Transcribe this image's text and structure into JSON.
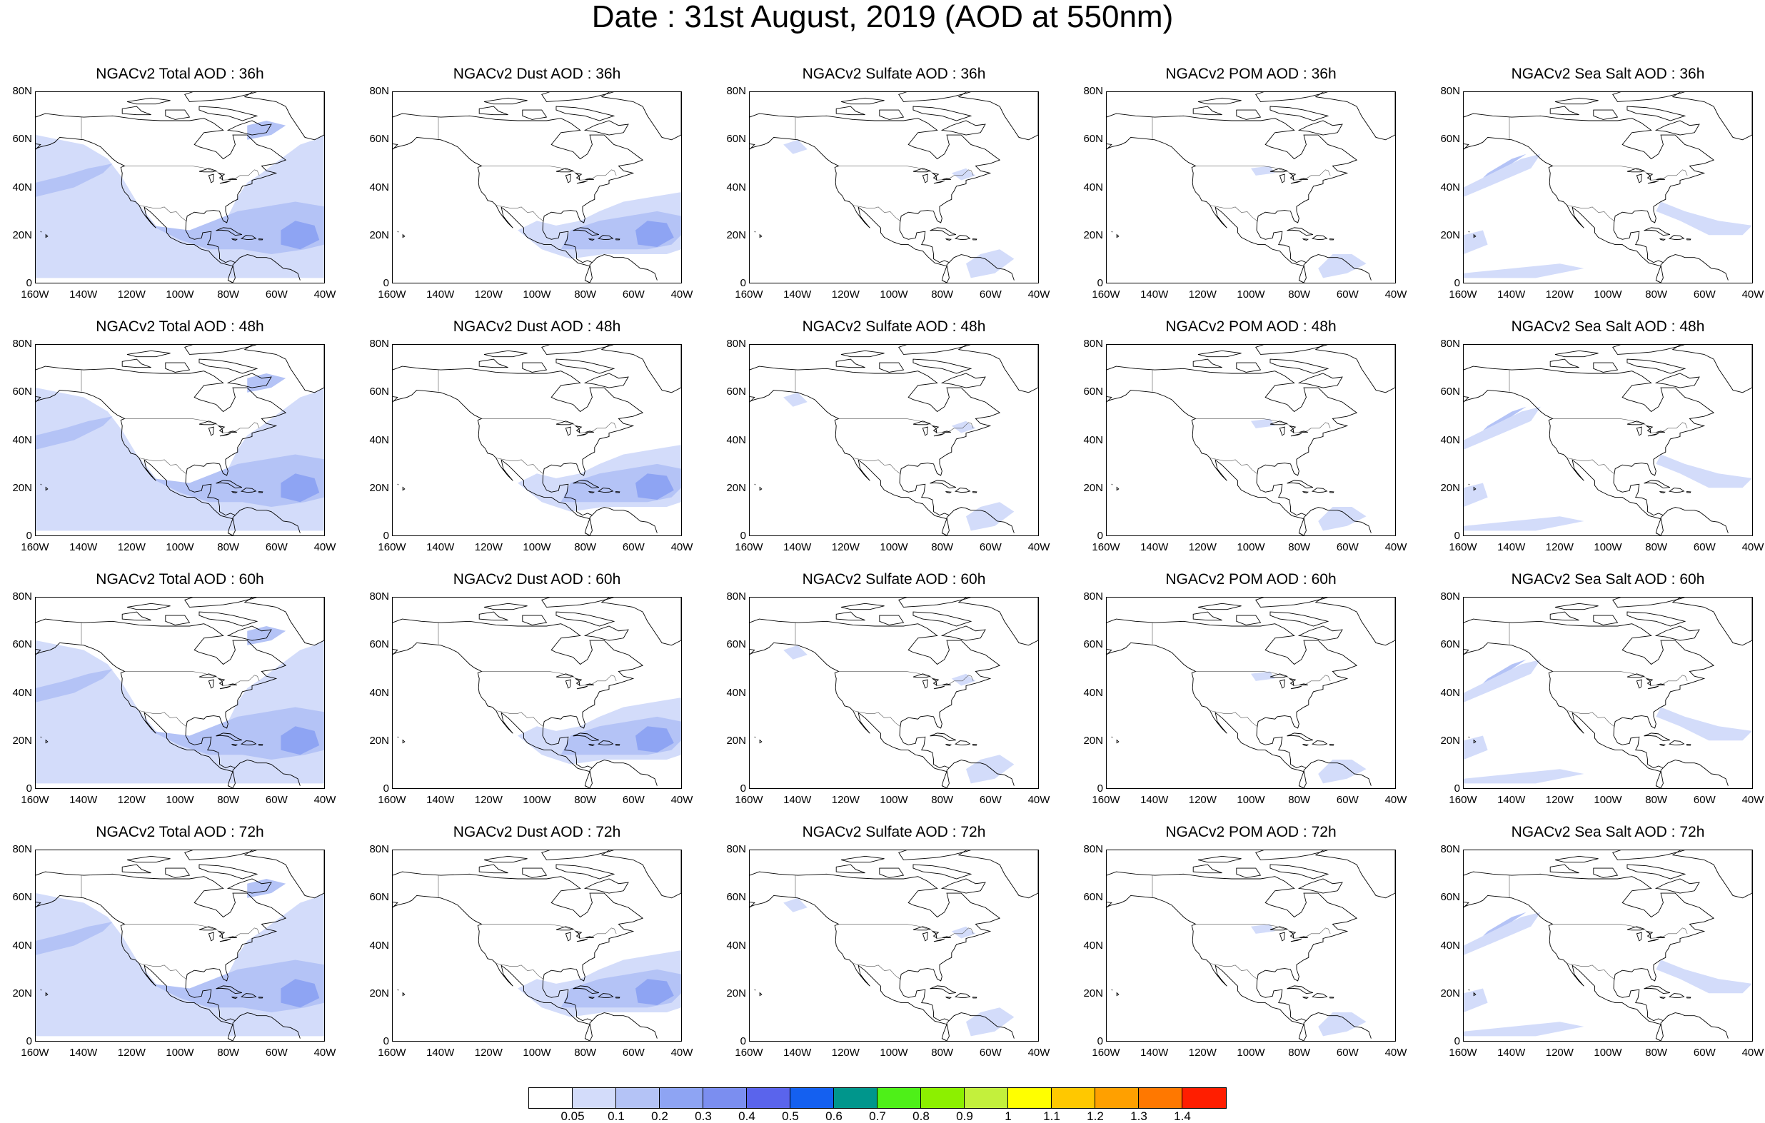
{
  "title": "Date : 31st August, 2019 (AOD at 550nm)",
  "axes": {
    "lat_labels": [
      "80N",
      "60N",
      "40N",
      "20N",
      "0"
    ],
    "lat_values": [
      80,
      60,
      40,
      20,
      0
    ],
    "lon_labels": [
      "160W",
      "140W",
      "120W",
      "100W",
      "80W",
      "60W",
      "40W"
    ],
    "lon_values": [
      -160,
      -140,
      -120,
      -100,
      -80,
      -60,
      -40
    ],
    "lat_range": [
      0,
      80
    ],
    "lon_range": [
      -160,
      -40
    ]
  },
  "panels": [
    {
      "title": "NGACv2 Total AOD : 36h",
      "species": "total"
    },
    {
      "title": "NGACv2 Dust AOD : 36h",
      "species": "dust"
    },
    {
      "title": "NGACv2 Sulfate AOD : 36h",
      "species": "sulfate"
    },
    {
      "title": "NGACv2 POM AOD : 36h",
      "species": "pom"
    },
    {
      "title": "NGACv2 Sea Salt AOD : 36h",
      "species": "seasalt"
    },
    {
      "title": "NGACv2 Total AOD : 48h",
      "species": "total"
    },
    {
      "title": "NGACv2 Dust AOD : 48h",
      "species": "dust"
    },
    {
      "title": "NGACv2 Sulfate AOD : 48h",
      "species": "sulfate"
    },
    {
      "title": "NGACv2 POM AOD : 48h",
      "species": "pom"
    },
    {
      "title": "NGACv2 Sea Salt AOD : 48h",
      "species": "seasalt"
    },
    {
      "title": "NGACv2 Total AOD : 60h",
      "species": "total"
    },
    {
      "title": "NGACv2 Dust AOD : 60h",
      "species": "dust"
    },
    {
      "title": "NGACv2 Sulfate AOD : 60h",
      "species": "sulfate"
    },
    {
      "title": "NGACv2 POM AOD : 60h",
      "species": "pom"
    },
    {
      "title": "NGACv2 Sea Salt AOD : 60h",
      "species": "seasalt"
    },
    {
      "title": "NGACv2 Total AOD : 72h",
      "species": "total"
    },
    {
      "title": "NGACv2 Dust AOD : 72h",
      "species": "dust"
    },
    {
      "title": "NGACv2 Sulfate AOD : 72h",
      "species": "sulfate"
    },
    {
      "title": "NGACv2 POM AOD : 72h",
      "species": "pom"
    },
    {
      "title": "NGACv2 Sea Salt  AOD : 72h",
      "species": "seasalt"
    }
  ],
  "legend": {
    "labels": [
      "0.05",
      "0.1",
      "0.2",
      "0.3",
      "0.4",
      "0.5",
      "0.6",
      "0.7",
      "0.8",
      "0.9",
      "1",
      "1.1",
      "1.2",
      "1.3",
      "1.4"
    ],
    "colors": [
      "#ffffff",
      "#d3dcfa",
      "#b4c3f6",
      "#8ea4f3",
      "#7b8ef0",
      "#5a64ec",
      "#1460f0",
      "#00968c",
      "#4ef018",
      "#8cf000",
      "#c3f03c",
      "#ffff00",
      "#ffc800",
      "#ffa000",
      "#ff7800",
      "#ff1e00"
    ]
  },
  "colors": {
    "aod_light": "#d3dcfa",
    "aod_mid": "#b4c3f6",
    "aod_high": "#8ea4f3",
    "aod_peak": "#7b8ef0",
    "coastline": "#000000"
  }
}
